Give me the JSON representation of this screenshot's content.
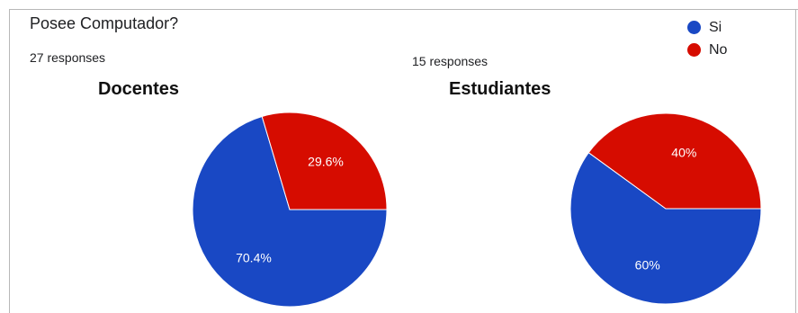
{
  "question": "Posee Computador?",
  "colors": {
    "si": "#1948c4",
    "no": "#d60c00"
  },
  "legend": [
    {
      "label": "Si",
      "color": "#1948c4"
    },
    {
      "label": "No",
      "color": "#d60c00"
    }
  ],
  "chart_data": [
    {
      "type": "pie",
      "title": "Docentes",
      "responses_text": "27 responses",
      "slices": [
        {
          "name": "Si",
          "value": 70.4,
          "label": "70.4%",
          "color": "#1948c4"
        },
        {
          "name": "No",
          "value": 29.6,
          "label": "29.6%",
          "color": "#d60c00"
        }
      ]
    },
    {
      "type": "pie",
      "title": "Estudiantes",
      "responses_text": "15 responses",
      "slices": [
        {
          "name": "Si",
          "value": 60,
          "label": "60%",
          "color": "#1948c4"
        },
        {
          "name": "No",
          "value": 40,
          "label": "40%",
          "color": "#d60c00"
        }
      ]
    }
  ]
}
